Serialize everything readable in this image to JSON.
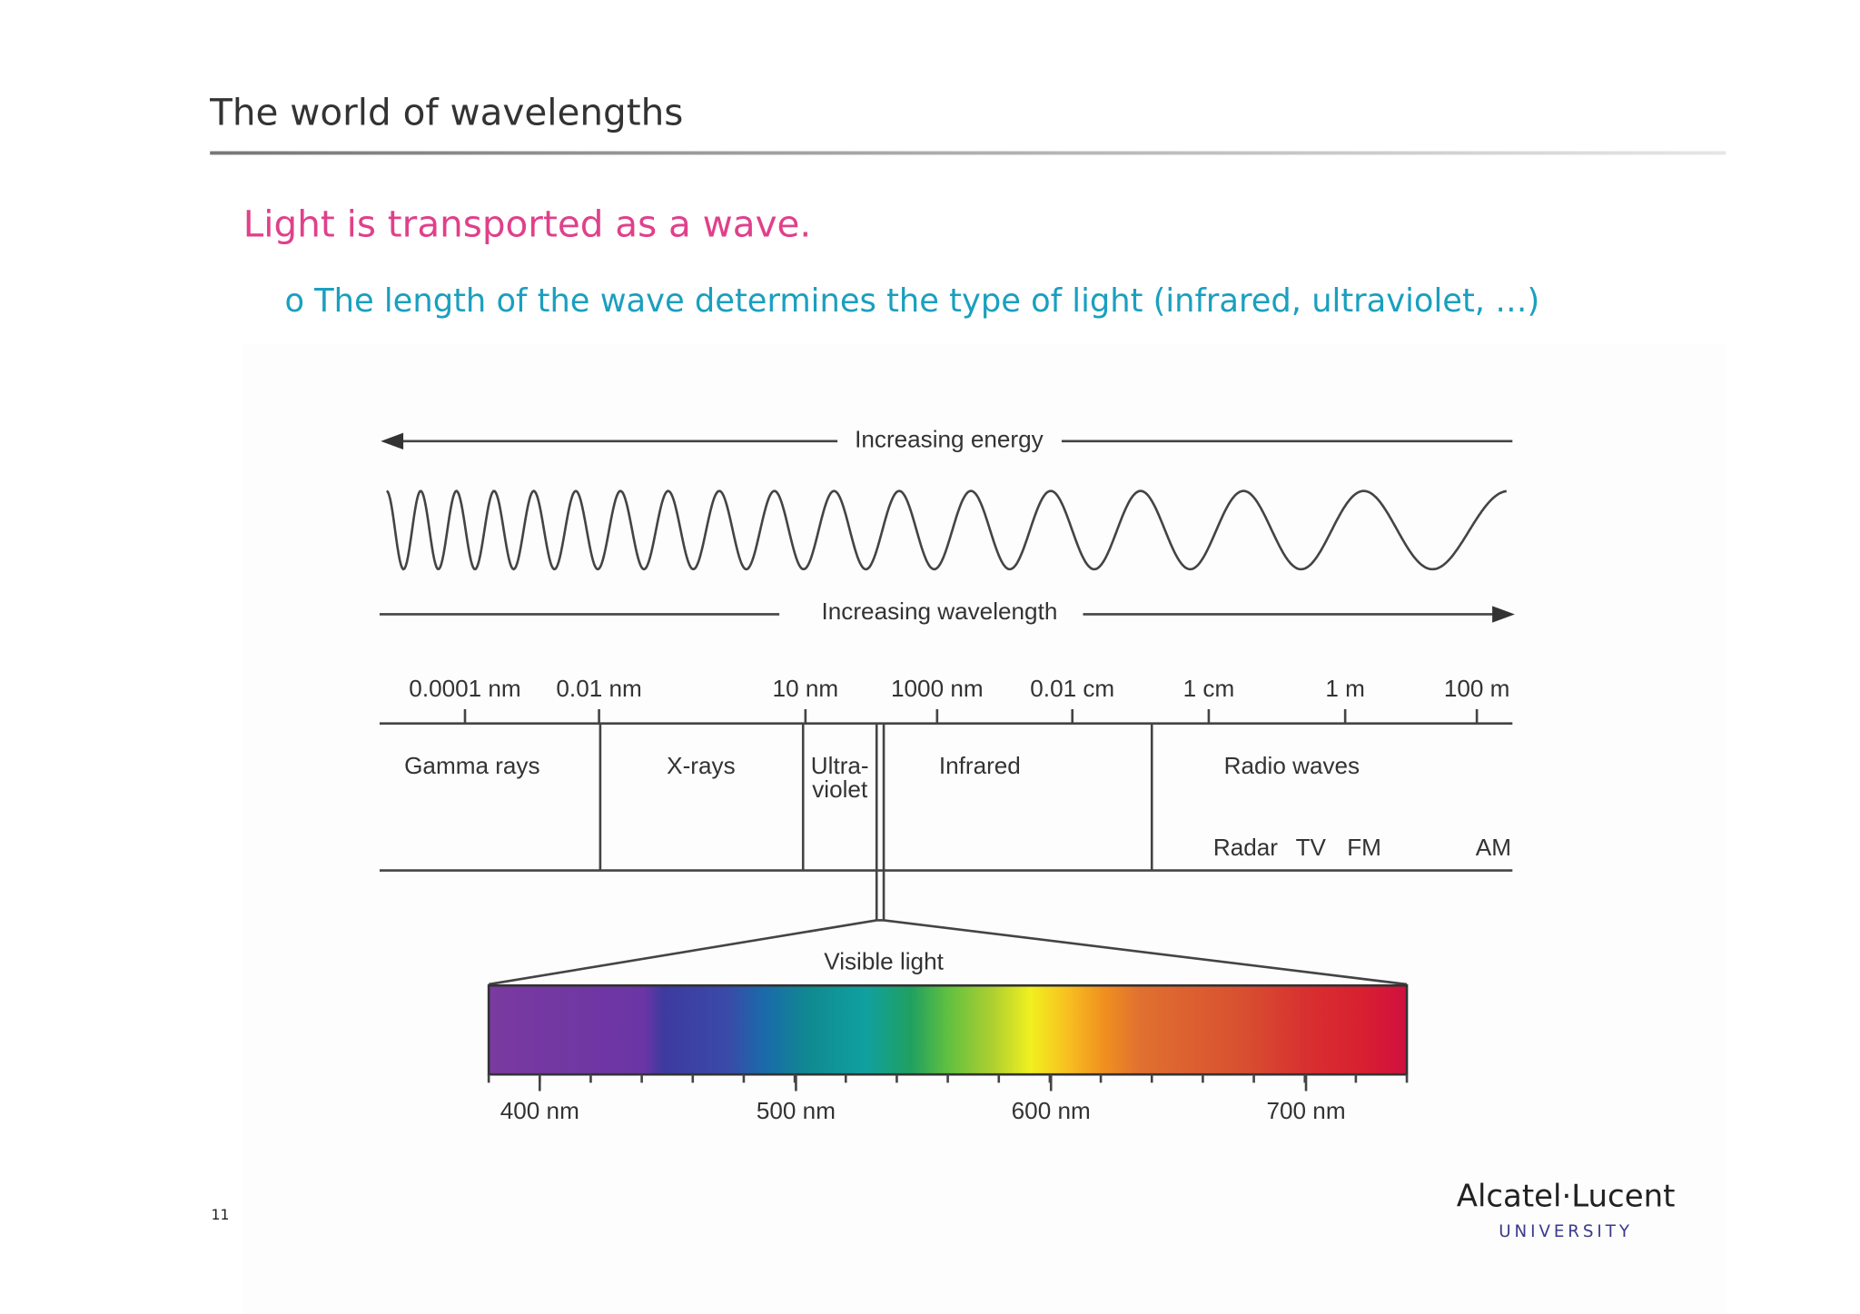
{
  "header": {
    "title": "The world of wavelengths"
  },
  "body": {
    "bullet": "Light is transported as a wave.",
    "sub_bullet_marker": "o",
    "sub_bullet": "The length of the wave determines the type of light (infrared, ultraviolet, …)"
  },
  "diagram": {
    "energy_label": "Increasing energy",
    "wavelength_label": "Increasing wavelength",
    "scale": [
      "0.0001 nm",
      "0.01 nm",
      "10 nm",
      "1000 nm",
      "0.01 cm",
      "1 cm",
      "1 m",
      "100 m"
    ],
    "bands": [
      "Gamma rays",
      "X-rays",
      "Infrared",
      "Radio waves"
    ],
    "ultraviolet": [
      "Ultra-",
      "violet"
    ],
    "radio_subbands": [
      "Radar",
      "TV",
      "FM",
      "AM"
    ],
    "visible_label": "Visible light",
    "visible_scale": [
      "400 nm",
      "500 nm",
      "600 nm",
      "700 nm"
    ]
  },
  "footer": {
    "page_number": "11",
    "logo": "Alcatel·Lucent",
    "logo_sub": "UNIVERSITY"
  }
}
